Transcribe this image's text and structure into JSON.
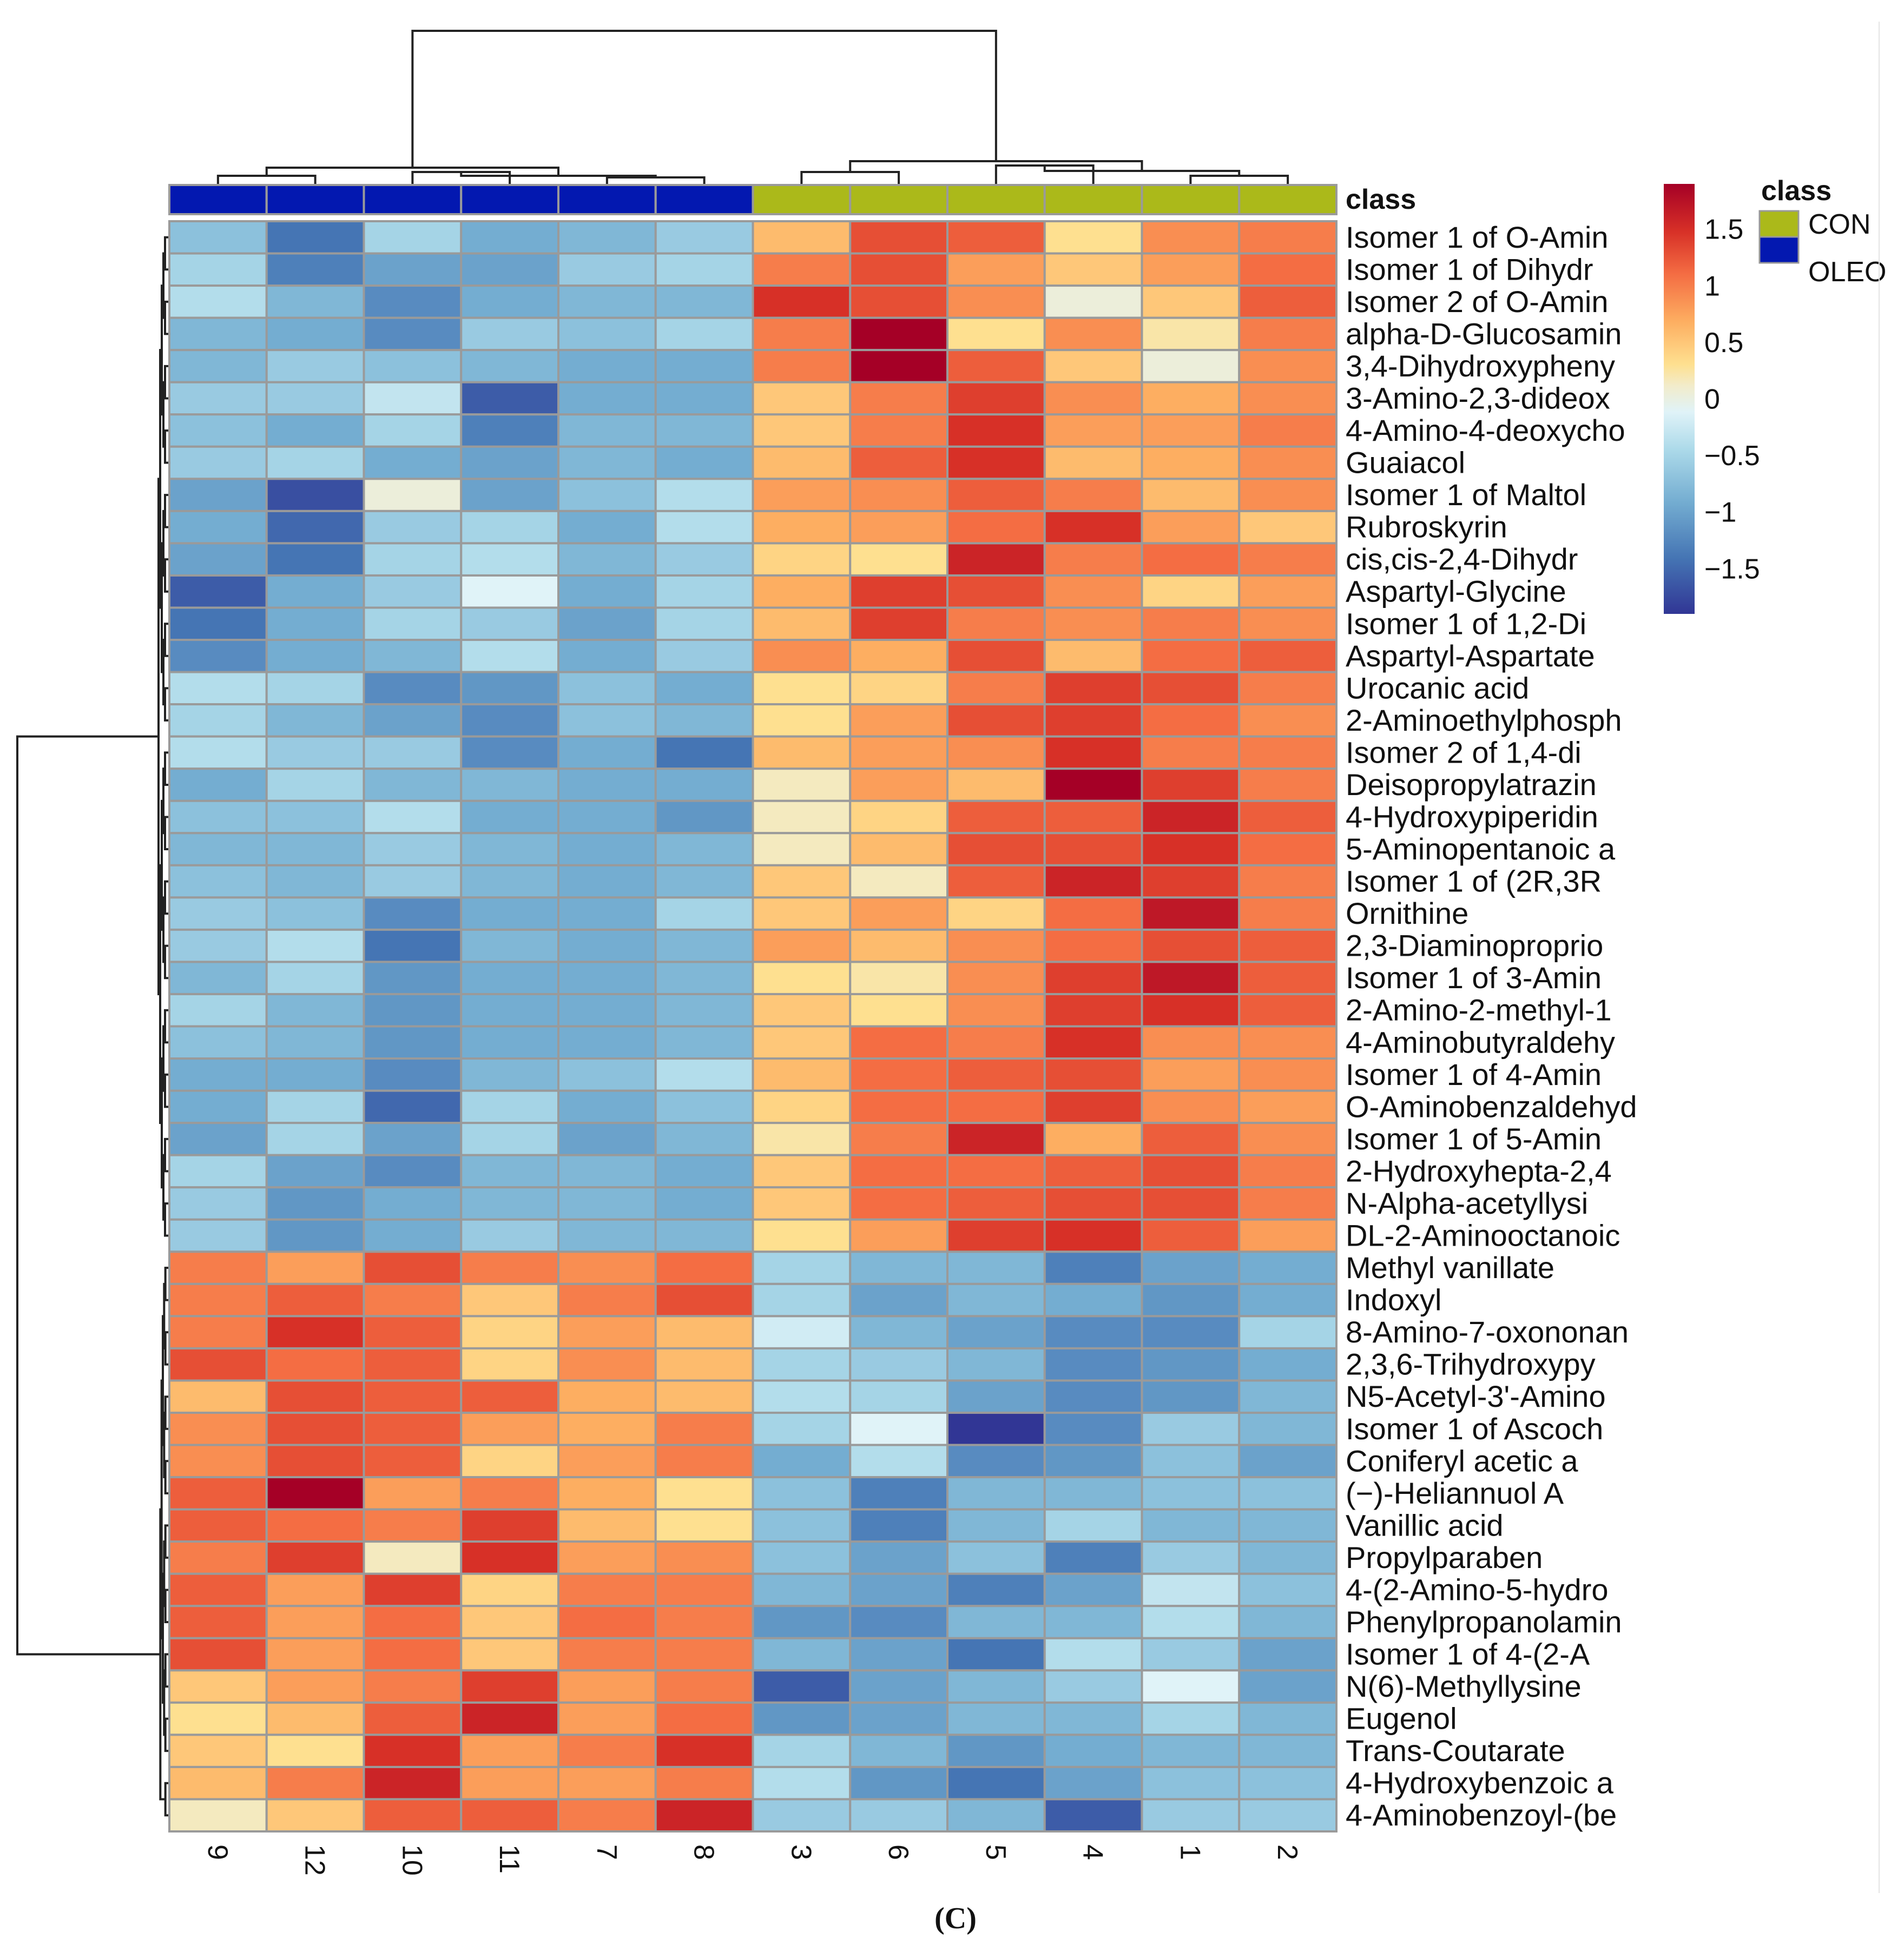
{
  "chart_data": {
    "type": "heatmap",
    "title": "",
    "caption": "(C)",
    "columns": [
      "9",
      "12",
      "10",
      "11",
      "7",
      "8",
      "3",
      "6",
      "5",
      "4",
      "1",
      "2"
    ],
    "column_class": [
      "OLEO",
      "OLEO",
      "OLEO",
      "OLEO",
      "OLEO",
      "OLEO",
      "CON",
      "CON",
      "CON",
      "CON",
      "CON",
      "CON"
    ],
    "class_annotation_label": "class",
    "class_legend": {
      "title": "class",
      "entries": [
        {
          "label": "CON",
          "color": "#abb91a"
        },
        {
          "label": "OLEO",
          "color": "#0318b0"
        }
      ]
    },
    "colorbar": {
      "range": [
        -1.9,
        1.9
      ],
      "ticks": [
        {
          "value": 1.5,
          "label": "1.5"
        },
        {
          "value": 1,
          "label": "1"
        },
        {
          "value": 0.5,
          "label": "0.5"
        },
        {
          "value": 0,
          "label": "0"
        },
        {
          "value": -0.5,
          "label": "−0.5"
        },
        {
          "value": -1,
          "label": "−1"
        },
        {
          "value": -1.5,
          "label": "−1.5"
        }
      ]
    },
    "rows": [
      "Isomer 1 of O-Amin",
      "Isomer 1 of Dihydr",
      "Isomer 2 of O-Amin",
      "alpha-D-Glucosamin",
      "3,4-Dihydroxypheny",
      "3-Amino-2,3-dideox",
      "4-Amino-4-deoxycho",
      "Guaiacol",
      "Isomer 1 of Maltol",
      "Rubroskyrin",
      "cis,cis-2,4-Dihydr",
      "Aspartyl-Glycine",
      "Isomer 1 of 1,2-Di",
      "Aspartyl-Aspartate",
      "Urocanic acid",
      "2-Aminoethylphosph",
      "Isomer 2 of 1,4-di",
      "Deisopropylatrazin",
      "4-Hydroxypiperidin",
      "5-Aminopentanoic a",
      "Isomer 1 of (2R,3R",
      "Ornithine",
      "2,3-Diaminoproprio",
      "Isomer 1 of 3-Amin",
      "2-Amino-2-methyl-1",
      "4-Aminobutyraldehy",
      "Isomer 1 of 4-Amin",
      "O-Aminobenzaldehyd",
      "Isomer 1 of 5-Amin",
      "2-Hydroxyhepta-2,4",
      "N-Alpha-acetyllysi",
      "DL-2-Aminooctanoic",
      "Methyl vanillate",
      "Indoxyl",
      "8-Amino-7-oxononan",
      "2,3,6-Trihydroxypy",
      "N5-Acetyl-3'-Amino",
      "Isomer 1 of Ascoch",
      "Coniferyl acetic a",
      "(−)-Heliannuol A",
      "Vanillic acid",
      "Propylparaben",
      "4-(2-Amino-5-hydro",
      "Phenylpropanolamin",
      "Isomer 1 of 4-(2-A",
      "N(6)-Methyllysine",
      "Eugenol",
      "Trans-Coutarate",
      "4-Hydroxybenzoic a",
      "4-Aminobenzoyl-(be"
    ],
    "values": [
      [
        -0.7,
        -1.4,
        -0.5,
        -0.9,
        -0.8,
        -0.6,
        0.6,
        1.3,
        1.2,
        0.3,
        0.9,
        1.0
      ],
      [
        -0.5,
        -1.3,
        -1.0,
        -1.0,
        -0.6,
        -0.5,
        1.0,
        1.3,
        0.8,
        0.5,
        0.8,
        1.1
      ],
      [
        -0.4,
        -0.8,
        -1.2,
        -0.9,
        -0.8,
        -0.8,
        1.5,
        1.3,
        0.9,
        0.0,
        0.5,
        1.2
      ],
      [
        -0.8,
        -0.9,
        -1.2,
        -0.6,
        -0.7,
        -0.5,
        1.0,
        1.9,
        0.3,
        0.9,
        0.2,
        1.0
      ],
      [
        -0.8,
        -0.6,
        -0.7,
        -0.8,
        -0.9,
        -0.9,
        1.0,
        1.9,
        1.2,
        0.5,
        0.0,
        0.9
      ],
      [
        -0.6,
        -0.6,
        -0.3,
        -1.6,
        -0.9,
        -0.9,
        0.5,
        1.0,
        1.4,
        0.9,
        0.7,
        0.9
      ],
      [
        -0.7,
        -0.9,
        -0.5,
        -1.3,
        -0.8,
        -0.8,
        0.5,
        1.0,
        1.5,
        0.8,
        0.8,
        1.0
      ],
      [
        -0.6,
        -0.5,
        -0.9,
        -1.0,
        -0.8,
        -0.9,
        0.6,
        1.2,
        1.5,
        0.6,
        0.7,
        0.9
      ],
      [
        -1.0,
        -1.7,
        0.0,
        -1.0,
        -0.7,
        -0.4,
        0.8,
        0.9,
        1.2,
        1.0,
        0.6,
        0.9
      ],
      [
        -0.9,
        -1.5,
        -0.6,
        -0.5,
        -0.9,
        -0.4,
        0.7,
        0.8,
        1.1,
        1.5,
        0.8,
        0.5
      ],
      [
        -1.0,
        -1.4,
        -0.5,
        -0.4,
        -0.8,
        -0.6,
        0.4,
        0.3,
        1.6,
        1.0,
        1.1,
        1.0
      ],
      [
        -1.6,
        -0.9,
        -0.6,
        -0.1,
        -0.9,
        -0.5,
        0.7,
        1.4,
        1.3,
        0.9,
        0.4,
        0.8
      ],
      [
        -1.4,
        -0.9,
        -0.5,
        -0.6,
        -1.0,
        -0.5,
        0.6,
        1.4,
        1.0,
        0.9,
        1.0,
        0.9
      ],
      [
        -1.2,
        -0.9,
        -0.8,
        -0.4,
        -0.9,
        -0.6,
        0.9,
        0.7,
        1.3,
        0.6,
        1.1,
        1.2
      ],
      [
        -0.4,
        -0.5,
        -1.2,
        -1.1,
        -0.7,
        -0.9,
        0.3,
        0.4,
        1.0,
        1.4,
        1.3,
        1.0
      ],
      [
        -0.5,
        -0.8,
        -1.0,
        -1.2,
        -0.7,
        -0.8,
        0.3,
        0.8,
        1.3,
        1.4,
        1.1,
        0.9
      ],
      [
        -0.4,
        -0.6,
        -0.6,
        -1.2,
        -0.9,
        -1.4,
        0.6,
        0.8,
        0.9,
        1.5,
        1.0,
        1.0
      ],
      [
        -0.9,
        -0.5,
        -0.8,
        -0.8,
        -0.9,
        -0.9,
        0.1,
        0.8,
        0.6,
        1.9,
        1.4,
        1.0
      ],
      [
        -0.7,
        -0.7,
        -0.4,
        -0.9,
        -0.9,
        -1.1,
        0.1,
        0.4,
        1.2,
        1.2,
        1.6,
        1.2
      ],
      [
        -0.8,
        -0.8,
        -0.6,
        -0.8,
        -0.9,
        -0.8,
        0.1,
        0.6,
        1.3,
        1.3,
        1.5,
        1.1
      ],
      [
        -0.7,
        -0.8,
        -0.6,
        -0.8,
        -0.9,
        -0.8,
        0.5,
        0.1,
        1.2,
        1.6,
        1.4,
        1.0
      ],
      [
        -0.6,
        -0.7,
        -1.2,
        -0.9,
        -0.9,
        -0.5,
        0.5,
        0.8,
        0.4,
        1.1,
        1.7,
        1.0
      ],
      [
        -0.6,
        -0.4,
        -1.4,
        -0.8,
        -0.9,
        -0.8,
        0.8,
        0.6,
        0.9,
        1.1,
        1.3,
        1.2
      ],
      [
        -0.8,
        -0.5,
        -1.1,
        -0.9,
        -0.9,
        -0.8,
        0.3,
        0.2,
        0.9,
        1.4,
        1.7,
        1.2
      ],
      [
        -0.5,
        -0.8,
        -1.1,
        -0.9,
        -0.9,
        -0.8,
        0.5,
        0.3,
        0.9,
        1.4,
        1.5,
        1.2
      ],
      [
        -0.7,
        -0.8,
        -1.1,
        -0.9,
        -0.9,
        -0.8,
        0.5,
        1.1,
        1.0,
        1.5,
        0.9,
        0.9
      ],
      [
        -0.9,
        -0.9,
        -1.2,
        -0.8,
        -0.7,
        -0.4,
        0.6,
        1.1,
        1.2,
        1.3,
        0.8,
        0.9
      ],
      [
        -0.9,
        -0.5,
        -1.5,
        -0.5,
        -0.9,
        -0.7,
        0.4,
        1.1,
        1.1,
        1.4,
        0.9,
        0.8
      ],
      [
        -1.0,
        -0.5,
        -1.0,
        -0.5,
        -1.0,
        -0.8,
        0.2,
        1.0,
        1.6,
        0.7,
        1.2,
        0.9
      ],
      [
        -0.5,
        -1.0,
        -1.2,
        -0.8,
        -0.8,
        -0.9,
        0.5,
        1.1,
        1.1,
        1.2,
        1.3,
        1.0
      ],
      [
        -0.6,
        -1.1,
        -0.9,
        -0.8,
        -0.8,
        -0.9,
        0.5,
        1.1,
        1.2,
        1.3,
        1.3,
        1.0
      ],
      [
        -0.6,
        -1.1,
        -0.9,
        -0.6,
        -0.8,
        -0.8,
        0.3,
        0.8,
        1.4,
        1.5,
        1.2,
        0.8
      ],
      [
        1.0,
        0.8,
        1.3,
        1.0,
        0.9,
        1.1,
        -0.5,
        -0.8,
        -0.8,
        -1.3,
        -1.0,
        -0.9
      ],
      [
        1.0,
        1.2,
        1.0,
        0.5,
        1.0,
        1.3,
        -0.5,
        -1.0,
        -0.8,
        -0.9,
        -1.1,
        -0.9
      ],
      [
        1.0,
        1.5,
        1.2,
        0.4,
        0.8,
        0.6,
        -0.2,
        -0.8,
        -1.0,
        -1.2,
        -1.2,
        -0.5
      ],
      [
        1.3,
        1.1,
        1.2,
        0.4,
        0.9,
        0.6,
        -0.5,
        -0.6,
        -0.8,
        -1.2,
        -1.1,
        -0.9
      ],
      [
        0.6,
        1.3,
        1.2,
        1.2,
        0.7,
        0.6,
        -0.4,
        -0.5,
        -1.0,
        -1.2,
        -1.1,
        -0.8
      ],
      [
        0.9,
        1.3,
        1.2,
        0.8,
        0.7,
        1.0,
        -0.5,
        -0.1,
        -1.9,
        -1.2,
        -0.6,
        -0.8
      ],
      [
        0.9,
        1.3,
        1.2,
        0.4,
        0.8,
        1.0,
        -0.9,
        -0.4,
        -1.2,
        -1.1,
        -0.7,
        -1.0
      ],
      [
        1.2,
        1.9,
        0.8,
        1.0,
        0.7,
        0.3,
        -0.7,
        -1.3,
        -0.8,
        -0.8,
        -0.7,
        -0.7
      ],
      [
        1.2,
        1.1,
        1.0,
        1.4,
        0.6,
        0.3,
        -0.7,
        -1.3,
        -0.8,
        -0.5,
        -0.8,
        -0.8
      ],
      [
        1.0,
        1.4,
        0.1,
        1.5,
        0.8,
        0.9,
        -0.7,
        -1.0,
        -0.7,
        -1.3,
        -0.6,
        -0.8
      ],
      [
        1.2,
        0.8,
        1.4,
        0.4,
        1.0,
        1.0,
        -0.8,
        -1.0,
        -1.3,
        -1.0,
        -0.3,
        -0.7
      ],
      [
        1.2,
        0.8,
        1.1,
        0.5,
        1.1,
        1.0,
        -1.1,
        -1.2,
        -0.8,
        -0.8,
        -0.4,
        -0.8
      ],
      [
        1.3,
        0.8,
        1.1,
        0.5,
        1.0,
        1.0,
        -0.8,
        -1.0,
        -1.4,
        -0.4,
        -0.6,
        -1.0
      ],
      [
        0.5,
        0.8,
        1.0,
        1.4,
        0.8,
        1.0,
        -1.6,
        -1.0,
        -0.8,
        -0.6,
        -0.1,
        -1.0
      ],
      [
        0.3,
        0.6,
        1.2,
        1.6,
        0.8,
        1.1,
        -1.1,
        -1.0,
        -0.8,
        -0.8,
        -0.5,
        -0.8
      ],
      [
        0.5,
        0.3,
        1.5,
        0.8,
        1.0,
        1.5,
        -0.5,
        -0.8,
        -1.1,
        -0.9,
        -0.8,
        -0.8
      ],
      [
        0.6,
        1.0,
        1.6,
        0.8,
        0.8,
        1.0,
        -0.4,
        -1.1,
        -1.4,
        -1.0,
        -0.7,
        -0.7
      ],
      [
        0.1,
        0.5,
        1.2,
        1.2,
        1.0,
        1.6,
        -0.6,
        -0.6,
        -0.8,
        -1.6,
        -0.6,
        -0.6
      ]
    ]
  }
}
